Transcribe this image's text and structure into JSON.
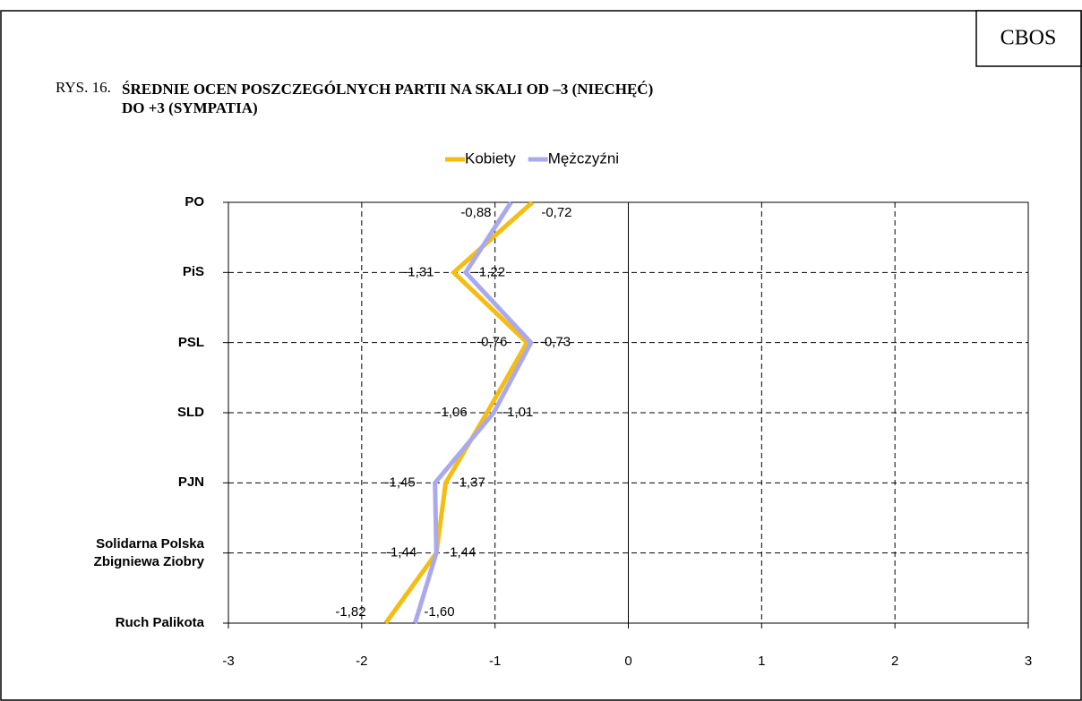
{
  "chart_data": {
    "type": "line",
    "source": "CBOS",
    "figure_label": "RYS. 16.",
    "title": "ŚREDNIE OCEN POSZCZEGÓLNYCH PARTII NA SKALI OD –3 (NIECHĘĆ)\nDO +3 (SYMPATIA)",
    "categories": [
      "PO",
      "PiS",
      "PSL",
      "SLD",
      "PJN",
      "Solidarna Polska\nZbigniewa Ziobry",
      "Ruch Palikota"
    ],
    "series": [
      {
        "name": "Kobiety",
        "color": "#f5bd12",
        "values": [
          -0.72,
          -1.31,
          -0.76,
          -1.06,
          -1.37,
          -1.44,
          -1.82
        ],
        "value_labels": [
          "-0,72",
          "-1,31",
          "-0,76",
          "-1,06",
          "-1,37",
          "-1,44",
          "-1,82"
        ]
      },
      {
        "name": "Mężczyźni",
        "color": "#a9a9ef",
        "values": [
          -0.88,
          -1.22,
          -0.73,
          -1.01,
          -1.45,
          -1.44,
          -1.6
        ],
        "value_labels": [
          "-0,88",
          "-1,22",
          "-0,73",
          "-1,01",
          "-1,45",
          "-1,44",
          "-1,60"
        ]
      }
    ],
    "xlim": [
      -3,
      3
    ],
    "xticks": [
      -3,
      -2,
      -1,
      0,
      1,
      2,
      3
    ],
    "grid": true,
    "legend": "top"
  }
}
